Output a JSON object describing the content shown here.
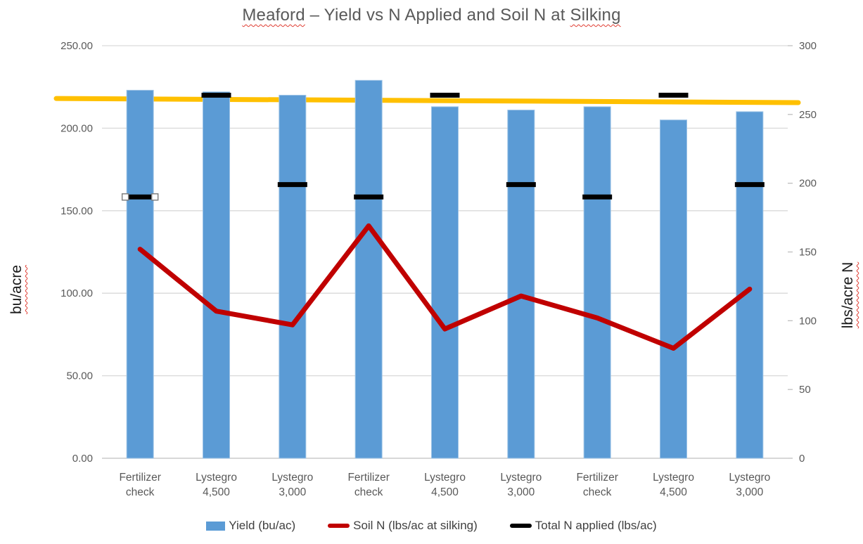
{
  "title": {
    "prefix": "Meaford",
    "middle": " – Yield vs N Applied and Soil N at ",
    "suffix": "Silking",
    "full": "Meaford – Yield vs N Applied and Soil N at Silking"
  },
  "axes": {
    "left": {
      "title": "bu/acre",
      "ticks": [
        "0.00",
        "50.00",
        "100.00",
        "150.00",
        "200.00",
        "250.00"
      ]
    },
    "right": {
      "title": "lbs/acre N",
      "ticks": [
        "0",
        "50",
        "100",
        "150",
        "200",
        "250",
        "300"
      ]
    }
  },
  "legend": [
    {
      "label": "Yield (bu/ac)",
      "marker": "bar",
      "color": "#5B9BD5"
    },
    {
      "label": "Soil N (lbs/ac at silking)",
      "marker": "line",
      "color": "#C00000"
    },
    {
      "label": "Total N applied (lbs/ac)",
      "marker": "line",
      "color": "#000000"
    }
  ],
  "colors": {
    "bar_fill": "#5B9BD5",
    "bar_border": "#9DC3E6",
    "soil_n_line": "#C00000",
    "n_applied_dash": "#000000",
    "reference_line": "#FFC000",
    "gridline": "#D9D9D9",
    "axis_line": "#BFBFBF",
    "tick_text": "#595959",
    "squiggle": "#E03C31"
  },
  "chart_data": {
    "type": "bar",
    "title": "Meaford – Yield vs N Applied and Soil N at Silking",
    "ylabel_left": "bu/acre",
    "ylabel_right": "lbs/acre N",
    "ylim_left": [
      0,
      250
    ],
    "ylim_right": [
      0,
      300
    ],
    "grid": true,
    "legend_position": "bottom",
    "categories": [
      [
        "Fertilizer",
        "check"
      ],
      [
        "Lystegro",
        "4,500"
      ],
      [
        "Lystegro",
        "3,000"
      ],
      [
        "Fertilizer",
        "check"
      ],
      [
        "Lystegro",
        "4,500"
      ],
      [
        "Lystegro",
        "3,000"
      ],
      [
        "Fertilizer",
        "check"
      ],
      [
        "Lystegro",
        "4,500"
      ],
      [
        "Lystegro",
        "3,000"
      ]
    ],
    "series": [
      {
        "name": "Yield (bu/ac)",
        "type": "bar",
        "axis": "left",
        "color": "#5B9BD5",
        "values": [
          223,
          222,
          220,
          229,
          213,
          211,
          213,
          205,
          210
        ]
      },
      {
        "name": "Soil N (lbs/ac at silking)",
        "type": "line",
        "axis": "right",
        "color": "#C00000",
        "values": [
          152,
          107,
          97,
          169,
          94,
          118,
          102,
          80,
          123
        ]
      },
      {
        "name": "Total N applied (lbs/ac)",
        "type": "dash",
        "axis": "right",
        "color": "#000000",
        "values": [
          190,
          264,
          199,
          190,
          264,
          199,
          190,
          264,
          199
        ]
      }
    ],
    "reference_line": {
      "axis": "left",
      "value_start": 218,
      "value_end": 215.5,
      "color": "#FFC000"
    }
  },
  "annotations": {
    "selected_dash_index": 0
  }
}
